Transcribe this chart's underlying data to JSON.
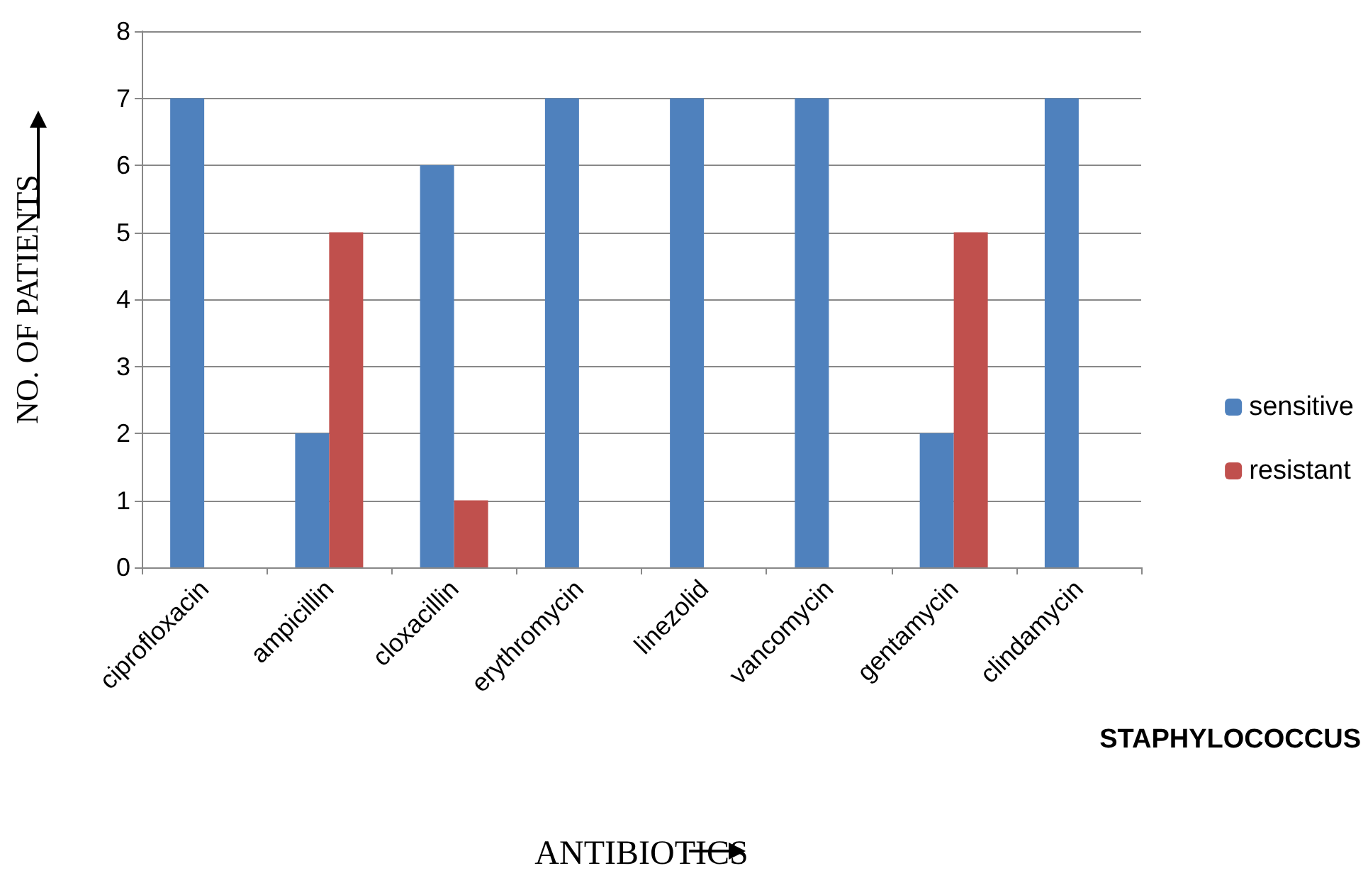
{
  "chart_data": {
    "type": "bar",
    "xlabel": "ANTIBIOTICS",
    "ylabel": "NO. OF PATIENTS",
    "categories": [
      "ciprofloxacin",
      "ampicillin",
      "cloxacillin",
      "erythromycin",
      "linezolid",
      "vancomycin",
      "gentamycin",
      "clindamycin"
    ],
    "series": [
      {
        "name": "sensitive",
        "color": "#4f81bd",
        "values": [
          7,
          2,
          6,
          7,
          7,
          7,
          2,
          7
        ]
      },
      {
        "name": "resistant",
        "color": "#c0504d",
        "values": [
          0,
          5,
          1,
          0,
          0,
          0,
          5,
          0
        ]
      }
    ],
    "ylim": [
      0,
      8
    ],
    "yticks": [
      0,
      1,
      2,
      3,
      4,
      5,
      6,
      7,
      8
    ],
    "grid": "y",
    "legend": "right",
    "annotations": [
      "STAPHYLOCOCCUS"
    ]
  }
}
